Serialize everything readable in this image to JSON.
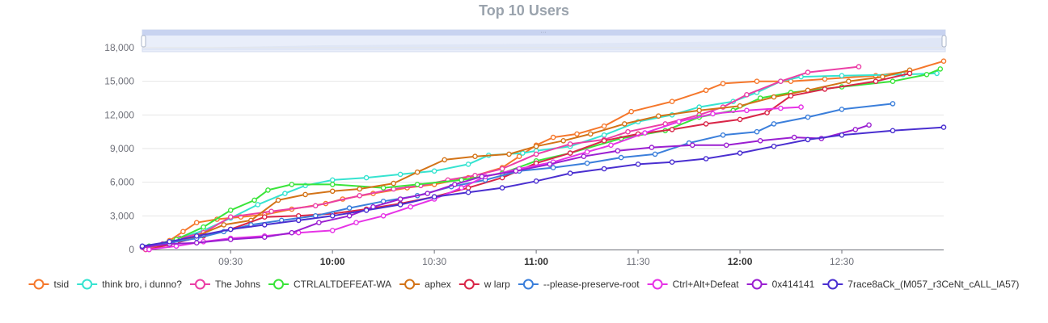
{
  "chart_data": {
    "type": "line",
    "title": "Top 10 Users",
    "xlabel": "",
    "ylabel": "",
    "ylim": [
      0,
      18000
    ],
    "y_ticks": [
      "0",
      "3,000",
      "6,000",
      "9,000",
      "12,000",
      "15,000",
      "18,000"
    ],
    "x_range": [
      "09:04",
      "13:00"
    ],
    "x_ticks": [
      {
        "time": "09:30",
        "label": "09:30",
        "bold": false
      },
      {
        "time": "10:00",
        "label": "10:00",
        "bold": true
      },
      {
        "time": "10:30",
        "label": "10:30",
        "bold": false
      },
      {
        "time": "11:00",
        "label": "11:00",
        "bold": true
      },
      {
        "time": "11:30",
        "label": "11:30",
        "bold": false
      },
      {
        "time": "12:00",
        "label": "12:00",
        "bold": true
      },
      {
        "time": "12:30",
        "label": "12:30",
        "bold": false
      }
    ],
    "grid": true,
    "legend_position": "bottom",
    "data_zoom_slider": true,
    "series": [
      {
        "name": "tsid",
        "color": "#f5772b",
        "points": [
          [
            "09:05",
            0
          ],
          [
            "09:12",
            800
          ],
          [
            "09:16",
            1600
          ],
          [
            "09:20",
            2400
          ],
          [
            "09:26",
            2700
          ],
          [
            "09:33",
            2900
          ],
          [
            "09:40",
            3100
          ],
          [
            "09:48",
            3600
          ],
          [
            "09:58",
            4100
          ],
          [
            "10:03",
            4500
          ],
          [
            "10:12",
            5000
          ],
          [
            "10:22",
            5500
          ],
          [
            "10:30",
            5800
          ],
          [
            "10:40",
            6400
          ],
          [
            "10:50",
            7300
          ],
          [
            "10:55",
            8300
          ],
          [
            "11:00",
            9300
          ],
          [
            "11:05",
            10000
          ],
          [
            "11:12",
            10300
          ],
          [
            "11:20",
            11000
          ],
          [
            "11:28",
            12300
          ],
          [
            "11:40",
            13200
          ],
          [
            "11:50",
            14200
          ],
          [
            "11:55",
            14800
          ],
          [
            "12:05",
            15000
          ],
          [
            "12:15",
            15000
          ],
          [
            "12:25",
            15200
          ],
          [
            "12:40",
            15500
          ],
          [
            "12:50",
            15900
          ],
          [
            "13:00",
            16800
          ]
        ]
      },
      {
        "name": "think bro, i dunno?",
        "color": "#36e3d0",
        "points": [
          [
            "09:04",
            200
          ],
          [
            "09:12",
            700
          ],
          [
            "09:22",
            1700
          ],
          [
            "09:30",
            2800
          ],
          [
            "09:38",
            4000
          ],
          [
            "09:46",
            5000
          ],
          [
            "09:52",
            5700
          ],
          [
            "10:00",
            6200
          ],
          [
            "10:10",
            6400
          ],
          [
            "10:20",
            6700
          ],
          [
            "10:30",
            7000
          ],
          [
            "10:40",
            7600
          ],
          [
            "10:46",
            8400
          ],
          [
            "10:56",
            8600
          ],
          [
            "11:00",
            8800
          ],
          [
            "11:10",
            9200
          ],
          [
            "11:20",
            10200
          ],
          [
            "11:30",
            11400
          ],
          [
            "11:40",
            12000
          ],
          [
            "11:48",
            12700
          ],
          [
            "11:58",
            13200
          ],
          [
            "12:05",
            14000
          ],
          [
            "12:12",
            15000
          ],
          [
            "12:18",
            15400
          ],
          [
            "12:30",
            15500
          ],
          [
            "12:48",
            15600
          ],
          [
            "12:58",
            15700
          ]
        ]
      },
      {
        "name": "The Johns",
        "color": "#eb3fa6",
        "points": [
          [
            "09:05",
            0
          ],
          [
            "09:10",
            500
          ],
          [
            "09:15",
            1000
          ],
          [
            "09:22",
            1500
          ],
          [
            "09:30",
            2900
          ],
          [
            "09:42",
            3400
          ],
          [
            "09:55",
            3900
          ],
          [
            "10:08",
            4800
          ],
          [
            "10:18",
            5400
          ],
          [
            "10:26",
            5700
          ],
          [
            "10:34",
            6200
          ],
          [
            "10:42",
            6600
          ],
          [
            "10:50",
            7200
          ],
          [
            "11:00",
            8500
          ],
          [
            "11:10",
            9400
          ],
          [
            "11:20",
            9800
          ],
          [
            "11:27",
            10500
          ],
          [
            "11:38",
            11200
          ],
          [
            "11:48",
            12000
          ],
          [
            "11:55",
            12700
          ],
          [
            "12:02",
            13800
          ],
          [
            "12:12",
            15000
          ],
          [
            "12:20",
            15800
          ],
          [
            "12:35",
            16300
          ]
        ]
      },
      {
        "name": "CTRLALTDEFEAT-WA",
        "color": "#3ae43a",
        "points": [
          [
            "09:06",
            300
          ],
          [
            "09:14",
            900
          ],
          [
            "09:22",
            2000
          ],
          [
            "09:30",
            3500
          ],
          [
            "09:37",
            4400
          ],
          [
            "09:41",
            5300
          ],
          [
            "09:48",
            5800
          ],
          [
            "10:00",
            5800
          ],
          [
            "10:15",
            5500
          ],
          [
            "10:25",
            5800
          ],
          [
            "10:38",
            6200
          ],
          [
            "10:50",
            6800
          ],
          [
            "11:00",
            7900
          ],
          [
            "11:10",
            8600
          ],
          [
            "11:25",
            9900
          ],
          [
            "11:38",
            10600
          ],
          [
            "11:48",
            11800
          ],
          [
            "11:58",
            12400
          ],
          [
            "12:06",
            13500
          ],
          [
            "12:15",
            14000
          ],
          [
            "12:30",
            14500
          ],
          [
            "12:45",
            15000
          ],
          [
            "12:55",
            15600
          ],
          [
            "12:59",
            16100
          ]
        ]
      },
      {
        "name": "aphex",
        "color": "#d37317",
        "points": [
          [
            "09:04",
            200
          ],
          [
            "09:12",
            400
          ],
          [
            "09:20",
            1200
          ],
          [
            "09:28",
            2200
          ],
          [
            "09:36",
            2600
          ],
          [
            "09:44",
            4400
          ],
          [
            "09:52",
            4900
          ],
          [
            "10:00",
            5200
          ],
          [
            "10:08",
            5400
          ],
          [
            "10:18",
            5900
          ],
          [
            "10:25",
            6900
          ],
          [
            "10:33",
            8000
          ],
          [
            "10:42",
            8300
          ],
          [
            "10:52",
            8500
          ],
          [
            "11:00",
            9200
          ],
          [
            "11:08",
            9700
          ],
          [
            "11:16",
            10300
          ],
          [
            "11:26",
            11200
          ],
          [
            "11:36",
            11900
          ],
          [
            "11:48",
            12400
          ],
          [
            "12:00",
            12800
          ],
          [
            "12:10",
            13600
          ],
          [
            "12:20",
            14200
          ],
          [
            "12:32",
            15000
          ],
          [
            "12:42",
            15400
          ],
          [
            "12:50",
            16000
          ]
        ]
      },
      {
        "name": "w larp",
        "color": "#d92648",
        "points": [
          [
            "09:06",
            0
          ],
          [
            "09:14",
            600
          ],
          [
            "09:22",
            1200
          ],
          [
            "09:30",
            1800
          ],
          [
            "09:40",
            2900
          ],
          [
            "09:50",
            3000
          ],
          [
            "10:00",
            3200
          ],
          [
            "10:10",
            3600
          ],
          [
            "10:20",
            4100
          ],
          [
            "10:30",
            4700
          ],
          [
            "10:40",
            5500
          ],
          [
            "10:50",
            6400
          ],
          [
            "11:00",
            7700
          ],
          [
            "11:10",
            8600
          ],
          [
            "11:20",
            9700
          ],
          [
            "11:30",
            10300
          ],
          [
            "11:40",
            10700
          ],
          [
            "11:50",
            11200
          ],
          [
            "12:00",
            11600
          ],
          [
            "12:08",
            12200
          ],
          [
            "12:15",
            13700
          ],
          [
            "12:25",
            14300
          ],
          [
            "12:40",
            15000
          ],
          [
            "12:50",
            15700
          ]
        ]
      },
      {
        "name": "--please-preserve-root",
        "color": "#3b7fdb",
        "points": [
          [
            "09:04",
            300
          ],
          [
            "09:12",
            600
          ],
          [
            "09:20",
            1000
          ],
          [
            "09:28",
            1600
          ],
          [
            "09:36",
            2200
          ],
          [
            "09:45",
            2600
          ],
          [
            "09:55",
            3000
          ],
          [
            "10:05",
            3700
          ],
          [
            "10:15",
            4300
          ],
          [
            "10:25",
            4800
          ],
          [
            "10:35",
            5600
          ],
          [
            "10:45",
            6200
          ],
          [
            "10:55",
            7000
          ],
          [
            "11:05",
            7300
          ],
          [
            "11:15",
            7700
          ],
          [
            "11:25",
            8200
          ],
          [
            "11:35",
            8500
          ],
          [
            "11:45",
            9500
          ],
          [
            "11:55",
            10200
          ],
          [
            "12:05",
            10500
          ],
          [
            "12:10",
            11200
          ],
          [
            "12:20",
            11800
          ],
          [
            "12:30",
            12500
          ],
          [
            "12:45",
            13000
          ]
        ]
      },
      {
        "name": "Ctrl+Alt+Defeat",
        "color": "#e633e6",
        "points": [
          [
            "09:06",
            0
          ],
          [
            "09:14",
            300
          ],
          [
            "09:22",
            700
          ],
          [
            "09:30",
            1000
          ],
          [
            "09:40",
            1200
          ],
          [
            "09:50",
            1500
          ],
          [
            "10:00",
            1700
          ],
          [
            "10:07",
            2400
          ],
          [
            "10:15",
            3000
          ],
          [
            "10:23",
            3800
          ],
          [
            "10:30",
            4500
          ],
          [
            "10:38",
            5500
          ],
          [
            "10:45",
            6500
          ],
          [
            "10:55",
            7200
          ],
          [
            "11:05",
            7800
          ],
          [
            "11:15",
            8700
          ],
          [
            "11:22",
            9300
          ],
          [
            "11:32",
            10400
          ],
          [
            "11:42",
            11400
          ],
          [
            "11:52",
            12100
          ],
          [
            "12:02",
            12400
          ],
          [
            "12:12",
            12600
          ],
          [
            "12:18",
            12700
          ]
        ]
      },
      {
        "name": "0x414141",
        "color": "#9a1fd1",
        "points": [
          [
            "09:04",
            200
          ],
          [
            "09:12",
            500
          ],
          [
            "09:20",
            600
          ],
          [
            "09:30",
            900
          ],
          [
            "09:40",
            1100
          ],
          [
            "09:48",
            1500
          ],
          [
            "09:56",
            2400
          ],
          [
            "10:05",
            3000
          ],
          [
            "10:12",
            3800
          ],
          [
            "10:20",
            4500
          ],
          [
            "10:28",
            5000
          ],
          [
            "10:36",
            5800
          ],
          [
            "10:44",
            6500
          ],
          [
            "10:54",
            7000
          ],
          [
            "11:04",
            7600
          ],
          [
            "11:14",
            8300
          ],
          [
            "11:24",
            8800
          ],
          [
            "11:34",
            9100
          ],
          [
            "11:46",
            9300
          ],
          [
            "11:56",
            9300
          ],
          [
            "12:06",
            9700
          ],
          [
            "12:16",
            10000
          ],
          [
            "12:24",
            9900
          ],
          [
            "12:34",
            10700
          ],
          [
            "12:38",
            11100
          ]
        ]
      },
      {
        "name": "7race8aCk_(M057_r3CeNt_cALL_lA57)",
        "color": "#4a2fd0",
        "points": [
          [
            "09:04",
            300
          ],
          [
            "09:12",
            700
          ],
          [
            "09:20",
            1200
          ],
          [
            "09:30",
            1800
          ],
          [
            "09:40",
            2200
          ],
          [
            "09:50",
            2600
          ],
          [
            "10:00",
            3000
          ],
          [
            "10:10",
            3500
          ],
          [
            "10:20",
            4000
          ],
          [
            "10:30",
            4700
          ],
          [
            "10:40",
            5100
          ],
          [
            "10:50",
            5500
          ],
          [
            "11:00",
            6100
          ],
          [
            "11:10",
            6800
          ],
          [
            "11:20",
            7200
          ],
          [
            "11:30",
            7600
          ],
          [
            "11:40",
            7800
          ],
          [
            "11:50",
            8100
          ],
          [
            "12:00",
            8600
          ],
          [
            "12:10",
            9200
          ],
          [
            "12:20",
            9800
          ],
          [
            "12:30",
            10200
          ],
          [
            "12:45",
            10600
          ],
          [
            "13:00",
            10900
          ]
        ]
      }
    ]
  }
}
